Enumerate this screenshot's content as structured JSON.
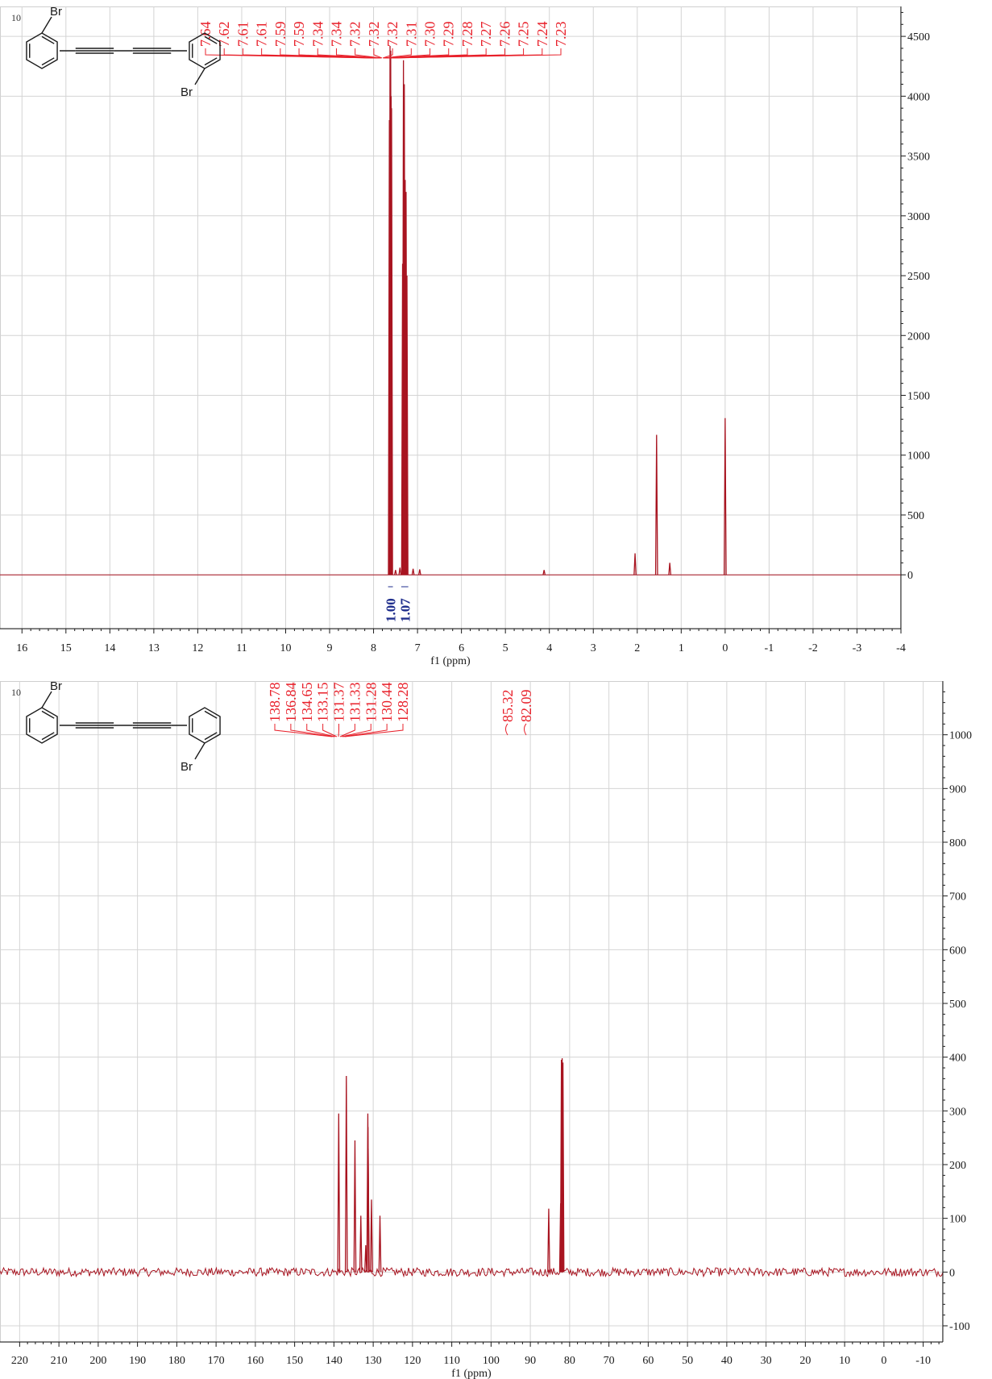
{
  "chart_data": [
    {
      "type": "line",
      "title": "",
      "xlabel": "f1 (ppm)",
      "ylabel": "",
      "xlim": [
        16.5,
        -4
      ],
      "ylim": [
        -450,
        4750
      ],
      "x_ticks": [
        16,
        15,
        14,
        13,
        12,
        11,
        10,
        9,
        8,
        7,
        6,
        5,
        4,
        3,
        2,
        1,
        0,
        -1,
        -2,
        -3,
        -4
      ],
      "x_tick_labels": [
        "16",
        "15",
        "14",
        "13",
        "12",
        "11",
        "10",
        "9",
        "8",
        "7",
        "6",
        "5",
        "4",
        "3",
        "2",
        "1",
        "0",
        "-1",
        "-2",
        "-3",
        "-4"
      ],
      "y_ticks": [
        0,
        500,
        1000,
        1500,
        2000,
        2500,
        3000,
        3500,
        4000,
        4500
      ],
      "y_tick_labels": [
        "0",
        "500",
        "1000",
        "1500",
        "2000",
        "2500",
        "3000",
        "3500",
        "4000",
        "4500"
      ],
      "grid": true,
      "series_color": "#a81420",
      "compound_number": "10",
      "atom_labels": [
        "Br",
        "Br"
      ],
      "peak_labels": [
        "7.64",
        "7.62",
        "7.61",
        "7.61",
        "7.59",
        "7.59",
        "7.34",
        "7.34",
        "7.32",
        "7.32",
        "7.32",
        "7.31",
        "7.30",
        "7.29",
        "7.28",
        "7.27",
        "7.26",
        "7.25",
        "7.24",
        "7.23"
      ],
      "integrals": [
        {
          "label": "1.00",
          "x_from": 7.67,
          "x_to": 7.56
        },
        {
          "label": "1.07",
          "x_from": 7.37,
          "x_to": 7.21
        }
      ],
      "peaks": [
        {
          "x": 7.64,
          "y": 3800
        },
        {
          "x": 7.625,
          "y": 4420
        },
        {
          "x": 7.61,
          "y": 4380
        },
        {
          "x": 7.6,
          "y": 4000
        },
        {
          "x": 7.59,
          "y": 3900
        },
        {
          "x": 7.5,
          "y": 40
        },
        {
          "x": 7.4,
          "y": 60
        },
        {
          "x": 7.34,
          "y": 2600
        },
        {
          "x": 7.32,
          "y": 4300
        },
        {
          "x": 7.3,
          "y": 4100
        },
        {
          "x": 7.28,
          "y": 3300
        },
        {
          "x": 7.26,
          "y": 3200
        },
        {
          "x": 7.24,
          "y": 2500
        },
        {
          "x": 7.1,
          "y": 50
        },
        {
          "x": 6.95,
          "y": 45
        },
        {
          "x": 4.12,
          "y": 40
        },
        {
          "x": 2.05,
          "y": 180
        },
        {
          "x": 1.56,
          "y": 1170
        },
        {
          "x": 1.26,
          "y": 100
        },
        {
          "x": 0.0,
          "y": 1310
        }
      ]
    },
    {
      "type": "line",
      "title": "",
      "xlabel": "f1 (ppm)",
      "ylabel": "",
      "xlim": [
        225,
        -15
      ],
      "ylim": [
        -130,
        1100
      ],
      "x_ticks": [
        220,
        210,
        200,
        190,
        180,
        170,
        160,
        150,
        140,
        130,
        120,
        110,
        100,
        90,
        80,
        70,
        60,
        50,
        40,
        30,
        20,
        10,
        0,
        -10
      ],
      "x_tick_labels": [
        "220",
        "210",
        "200",
        "190",
        "180",
        "170",
        "160",
        "150",
        "140",
        "130",
        "120",
        "110",
        "100",
        "90",
        "80",
        "70",
        "60",
        "50",
        "40",
        "30",
        "20",
        "10",
        "0",
        "-10"
      ],
      "y_ticks": [
        -100,
        0,
        100,
        200,
        300,
        400,
        500,
        600,
        700,
        800,
        900,
        1000
      ],
      "y_tick_labels": [
        "-100",
        "0",
        "100",
        "200",
        "300",
        "400",
        "500",
        "600",
        "700",
        "800",
        "900",
        "1000"
      ],
      "grid": true,
      "series_color": "#a81420",
      "compound_number": "10",
      "atom_labels": [
        "Br",
        "Br"
      ],
      "peak_labels": [
        "138.78",
        "136.84",
        "134.65",
        "133.15",
        "131.37",
        "131.33",
        "131.28",
        "130.44",
        "128.28",
        "85.32",
        "82.09"
      ],
      "peaks": [
        {
          "x": 138.78,
          "y": 295
        },
        {
          "x": 136.84,
          "y": 365
        },
        {
          "x": 134.65,
          "y": 245
        },
        {
          "x": 133.15,
          "y": 105
        },
        {
          "x": 131.9,
          "y": 50
        },
        {
          "x": 131.37,
          "y": 295
        },
        {
          "x": 131.33,
          "y": 270
        },
        {
          "x": 131.28,
          "y": 230
        },
        {
          "x": 130.44,
          "y": 135
        },
        {
          "x": 128.28,
          "y": 105
        },
        {
          "x": 85.32,
          "y": 118
        },
        {
          "x": 82.3,
          "y": 128
        },
        {
          "x": 82.09,
          "y": 395
        },
        {
          "x": 81.9,
          "y": 398
        },
        {
          "x": 81.7,
          "y": 390
        }
      ],
      "noise_amplitude": 8
    }
  ]
}
